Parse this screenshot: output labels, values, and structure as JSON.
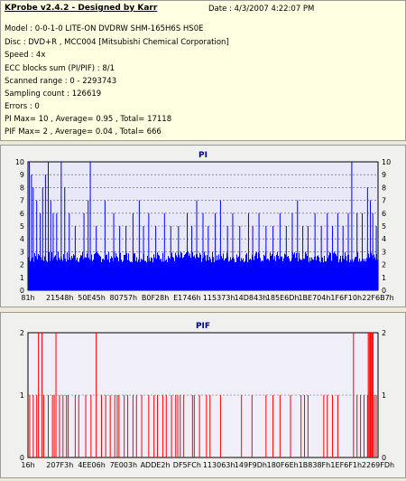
{
  "header": {
    "title": "KProbe v2.4.2 - Designed by Karr",
    "date": "Date : 4/3/2007 4:22:07 PM",
    "lines": [
      "Model : 0-0-1-0 LITE-ON DVDRW SHM-165H6S HS0E",
      "Disc : DVD+R , MCC004 [Mitsubishi Chemical Corporation]",
      "Speed : 4x",
      "ECC blocks sum (PI/PIF) : 8/1",
      "Scanned range : 0 - 2293743",
      "Sampling count : 126619",
      "Errors : 0",
      "PI Max= 10 , Average= 0.95 , Total= 17118",
      "PIF Max= 2 , Average= 0.04 , Total= 666"
    ]
  },
  "colors": {
    "pi": "#0000ff",
    "pif": "#ff0000",
    "plot_bg_pi": "#e8e8f8",
    "plot_bg_pif": "#f0eef8"
  },
  "chart_data": [
    {
      "type": "bar",
      "title": "PI",
      "ylim": [
        0,
        10
      ],
      "yticks": [
        0,
        1,
        2,
        3,
        4,
        5,
        6,
        7,
        8,
        9,
        10
      ],
      "x_tick_labels": [
        "81h",
        "21548h",
        "50E45h",
        "80757h",
        "B0F28h",
        "E1746h",
        "115373h",
        "14D843h",
        "185E6Dh",
        "1BE704h",
        "1F6F10h",
        "22F6B7h"
      ],
      "baseline": 3,
      "spikes": [
        [
          0.004,
          10
        ],
        [
          0.01,
          9
        ],
        [
          0.015,
          8
        ],
        [
          0.025,
          7
        ],
        [
          0.035,
          6
        ],
        [
          0.042,
          8
        ],
        [
          0.05,
          9
        ],
        [
          0.058,
          10
        ],
        [
          0.065,
          7
        ],
        [
          0.072,
          6
        ],
        [
          0.082,
          6
        ],
        [
          0.095,
          10
        ],
        [
          0.105,
          8
        ],
        [
          0.118,
          6
        ],
        [
          0.135,
          5
        ],
        [
          0.16,
          6
        ],
        [
          0.172,
          7
        ],
        [
          0.178,
          10
        ],
        [
          0.195,
          5
        ],
        [
          0.22,
          7
        ],
        [
          0.245,
          6
        ],
        [
          0.262,
          5
        ],
        [
          0.28,
          5
        ],
        [
          0.3,
          6
        ],
        [
          0.318,
          7
        ],
        [
          0.33,
          5
        ],
        [
          0.345,
          6
        ],
        [
          0.365,
          5
        ],
        [
          0.39,
          6
        ],
        [
          0.408,
          5
        ],
        [
          0.43,
          5
        ],
        [
          0.455,
          6
        ],
        [
          0.468,
          5
        ],
        [
          0.482,
          7
        ],
        [
          0.5,
          6
        ],
        [
          0.515,
          5
        ],
        [
          0.535,
          6
        ],
        [
          0.55,
          7
        ],
        [
          0.57,
          5
        ],
        [
          0.585,
          6
        ],
        [
          0.605,
          5
        ],
        [
          0.63,
          6
        ],
        [
          0.642,
          5
        ],
        [
          0.66,
          6
        ],
        [
          0.68,
          5
        ],
        [
          0.7,
          5
        ],
        [
          0.72,
          6
        ],
        [
          0.738,
          5
        ],
        [
          0.755,
          6
        ],
        [
          0.77,
          7
        ],
        [
          0.785,
          5
        ],
        [
          0.8,
          5
        ],
        [
          0.82,
          6
        ],
        [
          0.838,
          5
        ],
        [
          0.855,
          6
        ],
        [
          0.87,
          5
        ],
        [
          0.885,
          6
        ],
        [
          0.9,
          5
        ],
        [
          0.915,
          6
        ],
        [
          0.925,
          10
        ],
        [
          0.94,
          6
        ],
        [
          0.955,
          6
        ],
        [
          0.97,
          8
        ],
        [
          0.978,
          7
        ],
        [
          0.985,
          6
        ],
        [
          0.995,
          5
        ]
      ]
    },
    {
      "type": "bar",
      "title": "PIF",
      "ylim": [
        0,
        2
      ],
      "yticks": [
        0,
        1,
        2
      ],
      "x_tick_labels": [
        "16h",
        "207F3h",
        "4EE06h",
        "7E003h",
        "ADDE2h",
        "DF5FCh",
        "113063h",
        "149F9Dh",
        "180F6Eh",
        "1B838Fh",
        "1EF6F1h",
        "2269FDh"
      ],
      "spikes": [
        [
          0.005,
          1
        ],
        [
          0.015,
          1
        ],
        [
          0.025,
          1
        ],
        [
          0.03,
          2
        ],
        [
          0.04,
          2
        ],
        [
          0.045,
          1
        ],
        [
          0.058,
          1
        ],
        [
          0.07,
          1
        ],
        [
          0.075,
          1
        ],
        [
          0.08,
          2
        ],
        [
          0.09,
          1
        ],
        [
          0.1,
          1
        ],
        [
          0.11,
          1
        ],
        [
          0.115,
          1
        ],
        [
          0.135,
          1
        ],
        [
          0.145,
          1
        ],
        [
          0.165,
          1
        ],
        [
          0.18,
          1
        ],
        [
          0.195,
          2
        ],
        [
          0.21,
          1
        ],
        [
          0.222,
          1
        ],
        [
          0.235,
          1
        ],
        [
          0.248,
          1
        ],
        [
          0.255,
          1
        ],
        [
          0.26,
          1
        ],
        [
          0.275,
          1
        ],
        [
          0.285,
          1
        ],
        [
          0.3,
          1
        ],
        [
          0.31,
          1
        ],
        [
          0.325,
          1
        ],
        [
          0.345,
          1
        ],
        [
          0.36,
          1
        ],
        [
          0.37,
          1
        ],
        [
          0.385,
          1
        ],
        [
          0.395,
          1
        ],
        [
          0.41,
          1
        ],
        [
          0.422,
          1
        ],
        [
          0.428,
          1
        ],
        [
          0.435,
          1
        ],
        [
          0.445,
          1
        ],
        [
          0.47,
          1
        ],
        [
          0.475,
          1
        ],
        [
          0.49,
          1
        ],
        [
          0.51,
          1
        ],
        [
          0.52,
          1
        ],
        [
          0.55,
          1
        ],
        [
          0.61,
          1
        ],
        [
          0.64,
          1
        ],
        [
          0.68,
          1
        ],
        [
          0.7,
          1
        ],
        [
          0.72,
          1
        ],
        [
          0.75,
          1
        ],
        [
          0.78,
          1
        ],
        [
          0.79,
          1
        ],
        [
          0.8,
          1
        ],
        [
          0.845,
          1
        ],
        [
          0.855,
          1
        ],
        [
          0.87,
          1
        ],
        [
          0.885,
          1
        ],
        [
          0.93,
          2
        ],
        [
          0.94,
          1
        ],
        [
          0.95,
          1
        ],
        [
          0.96,
          1
        ],
        [
          0.97,
          1
        ],
        [
          0.972,
          2
        ],
        [
          0.975,
          2
        ],
        [
          0.978,
          2
        ],
        [
          0.98,
          2
        ],
        [
          0.983,
          2
        ],
        [
          0.986,
          2
        ],
        [
          0.99,
          1
        ],
        [
          0.995,
          1
        ]
      ]
    }
  ]
}
